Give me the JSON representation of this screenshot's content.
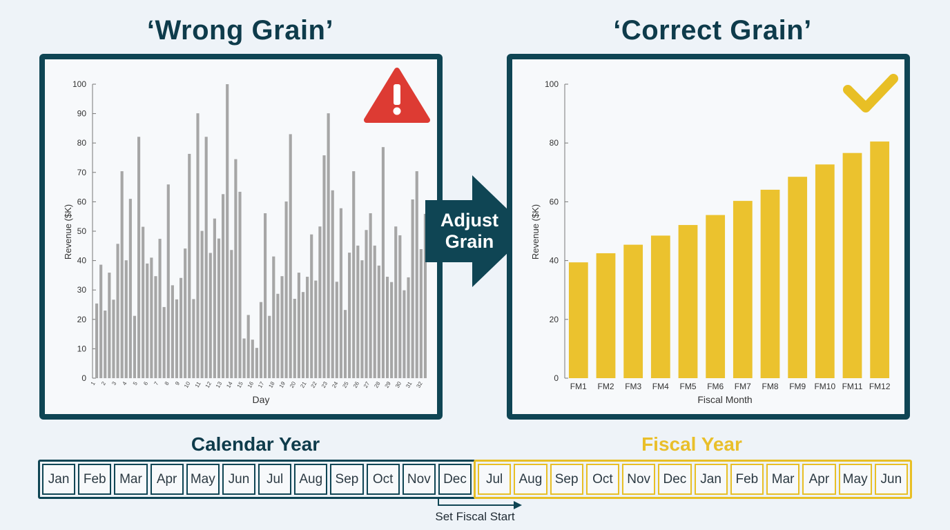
{
  "titles": {
    "left": "‘Wrong Grain’",
    "right": "‘Correct Grain’"
  },
  "transition": {
    "line1": "Adjust",
    "line2": "Grain"
  },
  "colors": {
    "navy": "#0f4554",
    "gray_bar": "#a6a6a6",
    "gold": "#ebc22e",
    "warning_red": "#dd3b33",
    "check_gold": "#e8bf25"
  },
  "icons": {
    "warning": "warning-triangle-icon",
    "check": "checkmark-icon"
  },
  "chart_data": [
    {
      "type": "bar",
      "ylabel": "Revenue ($K)",
      "xlabel": "Day",
      "ylim": [
        0,
        100
      ],
      "yticks": [
        0,
        10,
        20,
        30,
        40,
        50,
        60,
        70,
        80,
        90,
        100
      ],
      "tick_labels": [
        "1",
        "2",
        "3",
        "4",
        "5",
        "6",
        "7",
        "8",
        "9",
        "10",
        "11",
        "12",
        "13",
        "14",
        "15",
        "16",
        "17",
        "18",
        "19",
        "20",
        "21",
        "22",
        "23",
        "24",
        "25",
        "26",
        "27",
        "28",
        "29",
        "30",
        "31",
        "32"
      ],
      "values": [
        25.4,
        38.6,
        23.0,
        35.9,
        26.7,
        45.7,
        70.4,
        40.1,
        61.0,
        21.2,
        82.1,
        51.5,
        39.0,
        41.0,
        34.7,
        47.4,
        24.2,
        65.9,
        31.6,
        26.8,
        34.1,
        44.1,
        76.3,
        26.9,
        90.1,
        50.1,
        82.1,
        42.6,
        54.3,
        47.5,
        62.6,
        100.0,
        43.6,
        74.5,
        63.4,
        13.5,
        21.5,
        13.1,
        10.3,
        25.9,
        56.1,
        21.2,
        41.4,
        28.7,
        34.7,
        60.1,
        83.0,
        27.0,
        35.9,
        29.3,
        34.5,
        48.9,
        33.2,
        51.6,
        75.8,
        90.1,
        63.9,
        32.8,
        57.8,
        23.2,
        42.7,
        70.4,
        45.1,
        40.1,
        50.4,
        56.1,
        45.1,
        38.3,
        78.6,
        34.5,
        32.7,
        51.6,
        48.6,
        29.9,
        34.3,
        60.8,
        70.4,
        43.9,
        55.9
      ],
      "grid": false,
      "legend": "none"
    },
    {
      "type": "bar",
      "ylabel": "Revenue ($K)",
      "xlabel": "Fiscal Month",
      "ylim": [
        0,
        100
      ],
      "yticks": [
        0,
        20,
        40,
        60,
        80,
        100
      ],
      "categories": [
        "FM1",
        "FM2",
        "FM3",
        "FM4",
        "FM5",
        "FM6",
        "FM7",
        "FM8",
        "FM9",
        "FM10",
        "FM11",
        "FM12"
      ],
      "values": [
        39.4,
        42.5,
        45.4,
        48.5,
        52.1,
        55.5,
        60.3,
        64.1,
        68.5,
        72.7,
        76.6,
        80.5
      ],
      "grid": false,
      "legend": "none"
    }
  ],
  "calendar_year": {
    "label": "Calendar Year",
    "months": [
      "Jan",
      "Feb",
      "Mar",
      "Apr",
      "May",
      "Jun",
      "Jul",
      "Aug",
      "Sep",
      "Oct",
      "Nov",
      "Dec"
    ]
  },
  "fiscal_year": {
    "label": "Fiscal Year",
    "months": [
      "Jul",
      "Aug",
      "Sep",
      "Oct",
      "Nov",
      "Dec",
      "Jan",
      "Feb",
      "Mar",
      "Apr",
      "May",
      "Jun"
    ]
  },
  "fiscal_start_label": "Set Fiscal Start"
}
